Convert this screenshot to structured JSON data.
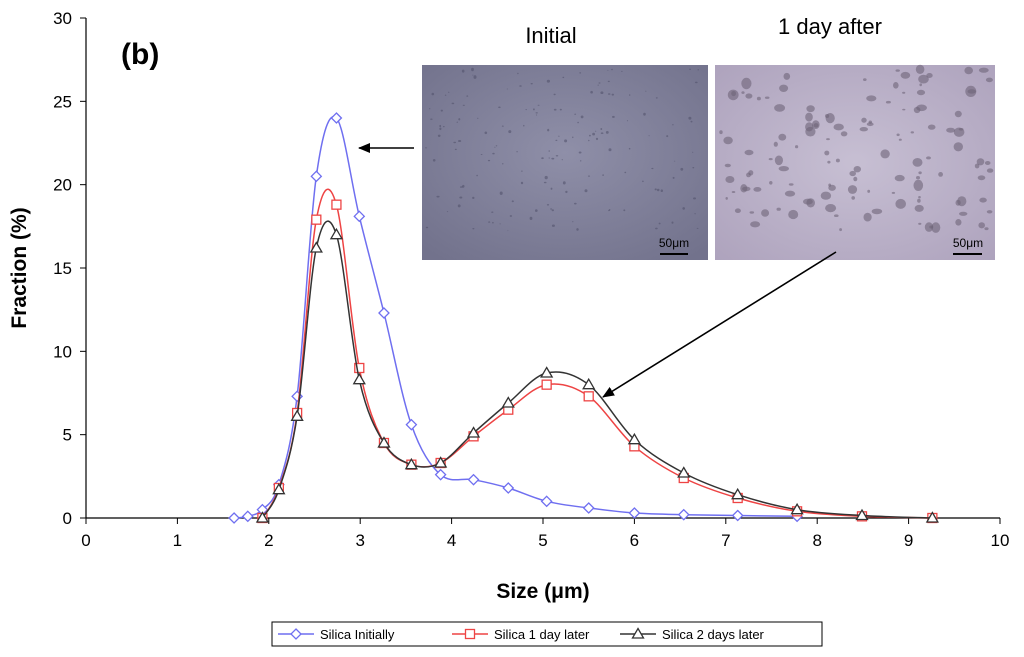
{
  "chart_data": {
    "type": "line",
    "panel_label": "(b)",
    "xlabel": "Size (μm)",
    "ylabel": "Fraction (%)",
    "xlim": [
      0,
      10
    ],
    "ylim": [
      0,
      30
    ],
    "x_ticks": [
      0,
      1,
      2,
      3,
      4,
      5,
      6,
      7,
      8,
      9,
      10
    ],
    "y_ticks": [
      0,
      5,
      10,
      15,
      20,
      25,
      30
    ],
    "grid": false,
    "legend_position": "bottom",
    "series": [
      {
        "name": "Silica Initially",
        "color": "#6f6ff0",
        "marker": "diamond",
        "x": [
          1.62,
          1.77,
          1.93,
          2.11,
          2.31,
          2.52,
          2.74,
          2.99,
          3.26,
          3.56,
          3.88,
          4.24,
          4.62,
          5.04,
          5.5,
          6.0,
          6.54,
          7.13,
          7.78
        ],
        "y": [
          0.0,
          0.1,
          0.5,
          2.0,
          7.3,
          20.5,
          24.0,
          18.1,
          12.3,
          5.6,
          2.6,
          2.3,
          1.8,
          1.0,
          0.6,
          0.3,
          0.2,
          0.15,
          0.1
        ]
      },
      {
        "name": "Silica 1 day later",
        "color": "#ee4444",
        "marker": "square",
        "x": [
          1.93,
          2.11,
          2.31,
          2.52,
          2.74,
          2.99,
          3.26,
          3.56,
          3.88,
          4.24,
          4.62,
          5.04,
          5.5,
          6.0,
          6.54,
          7.13,
          7.78,
          8.49,
          9.26
        ],
        "y": [
          0.0,
          1.8,
          6.3,
          17.9,
          18.8,
          9.0,
          4.5,
          3.2,
          3.3,
          4.9,
          6.5,
          8.0,
          7.3,
          4.3,
          2.4,
          1.2,
          0.4,
          0.1,
          0.0
        ]
      },
      {
        "name": "Silica 2 days later",
        "color": "#333333",
        "marker": "triangle",
        "x": [
          1.93,
          2.11,
          2.31,
          2.52,
          2.74,
          2.99,
          3.26,
          3.56,
          3.88,
          4.24,
          4.62,
          5.04,
          5.5,
          6.0,
          6.54,
          7.13,
          7.78,
          8.49,
          9.26
        ],
        "y": [
          0.0,
          1.7,
          6.1,
          16.2,
          17.0,
          8.3,
          4.5,
          3.2,
          3.3,
          5.1,
          6.9,
          8.7,
          8.0,
          4.7,
          2.7,
          1.4,
          0.5,
          0.15,
          0.0
        ]
      }
    ],
    "insets": [
      {
        "title": "Initial",
        "scale_bar": "50μm"
      },
      {
        "title": "1 day after",
        "scale_bar": "50μm"
      }
    ]
  }
}
